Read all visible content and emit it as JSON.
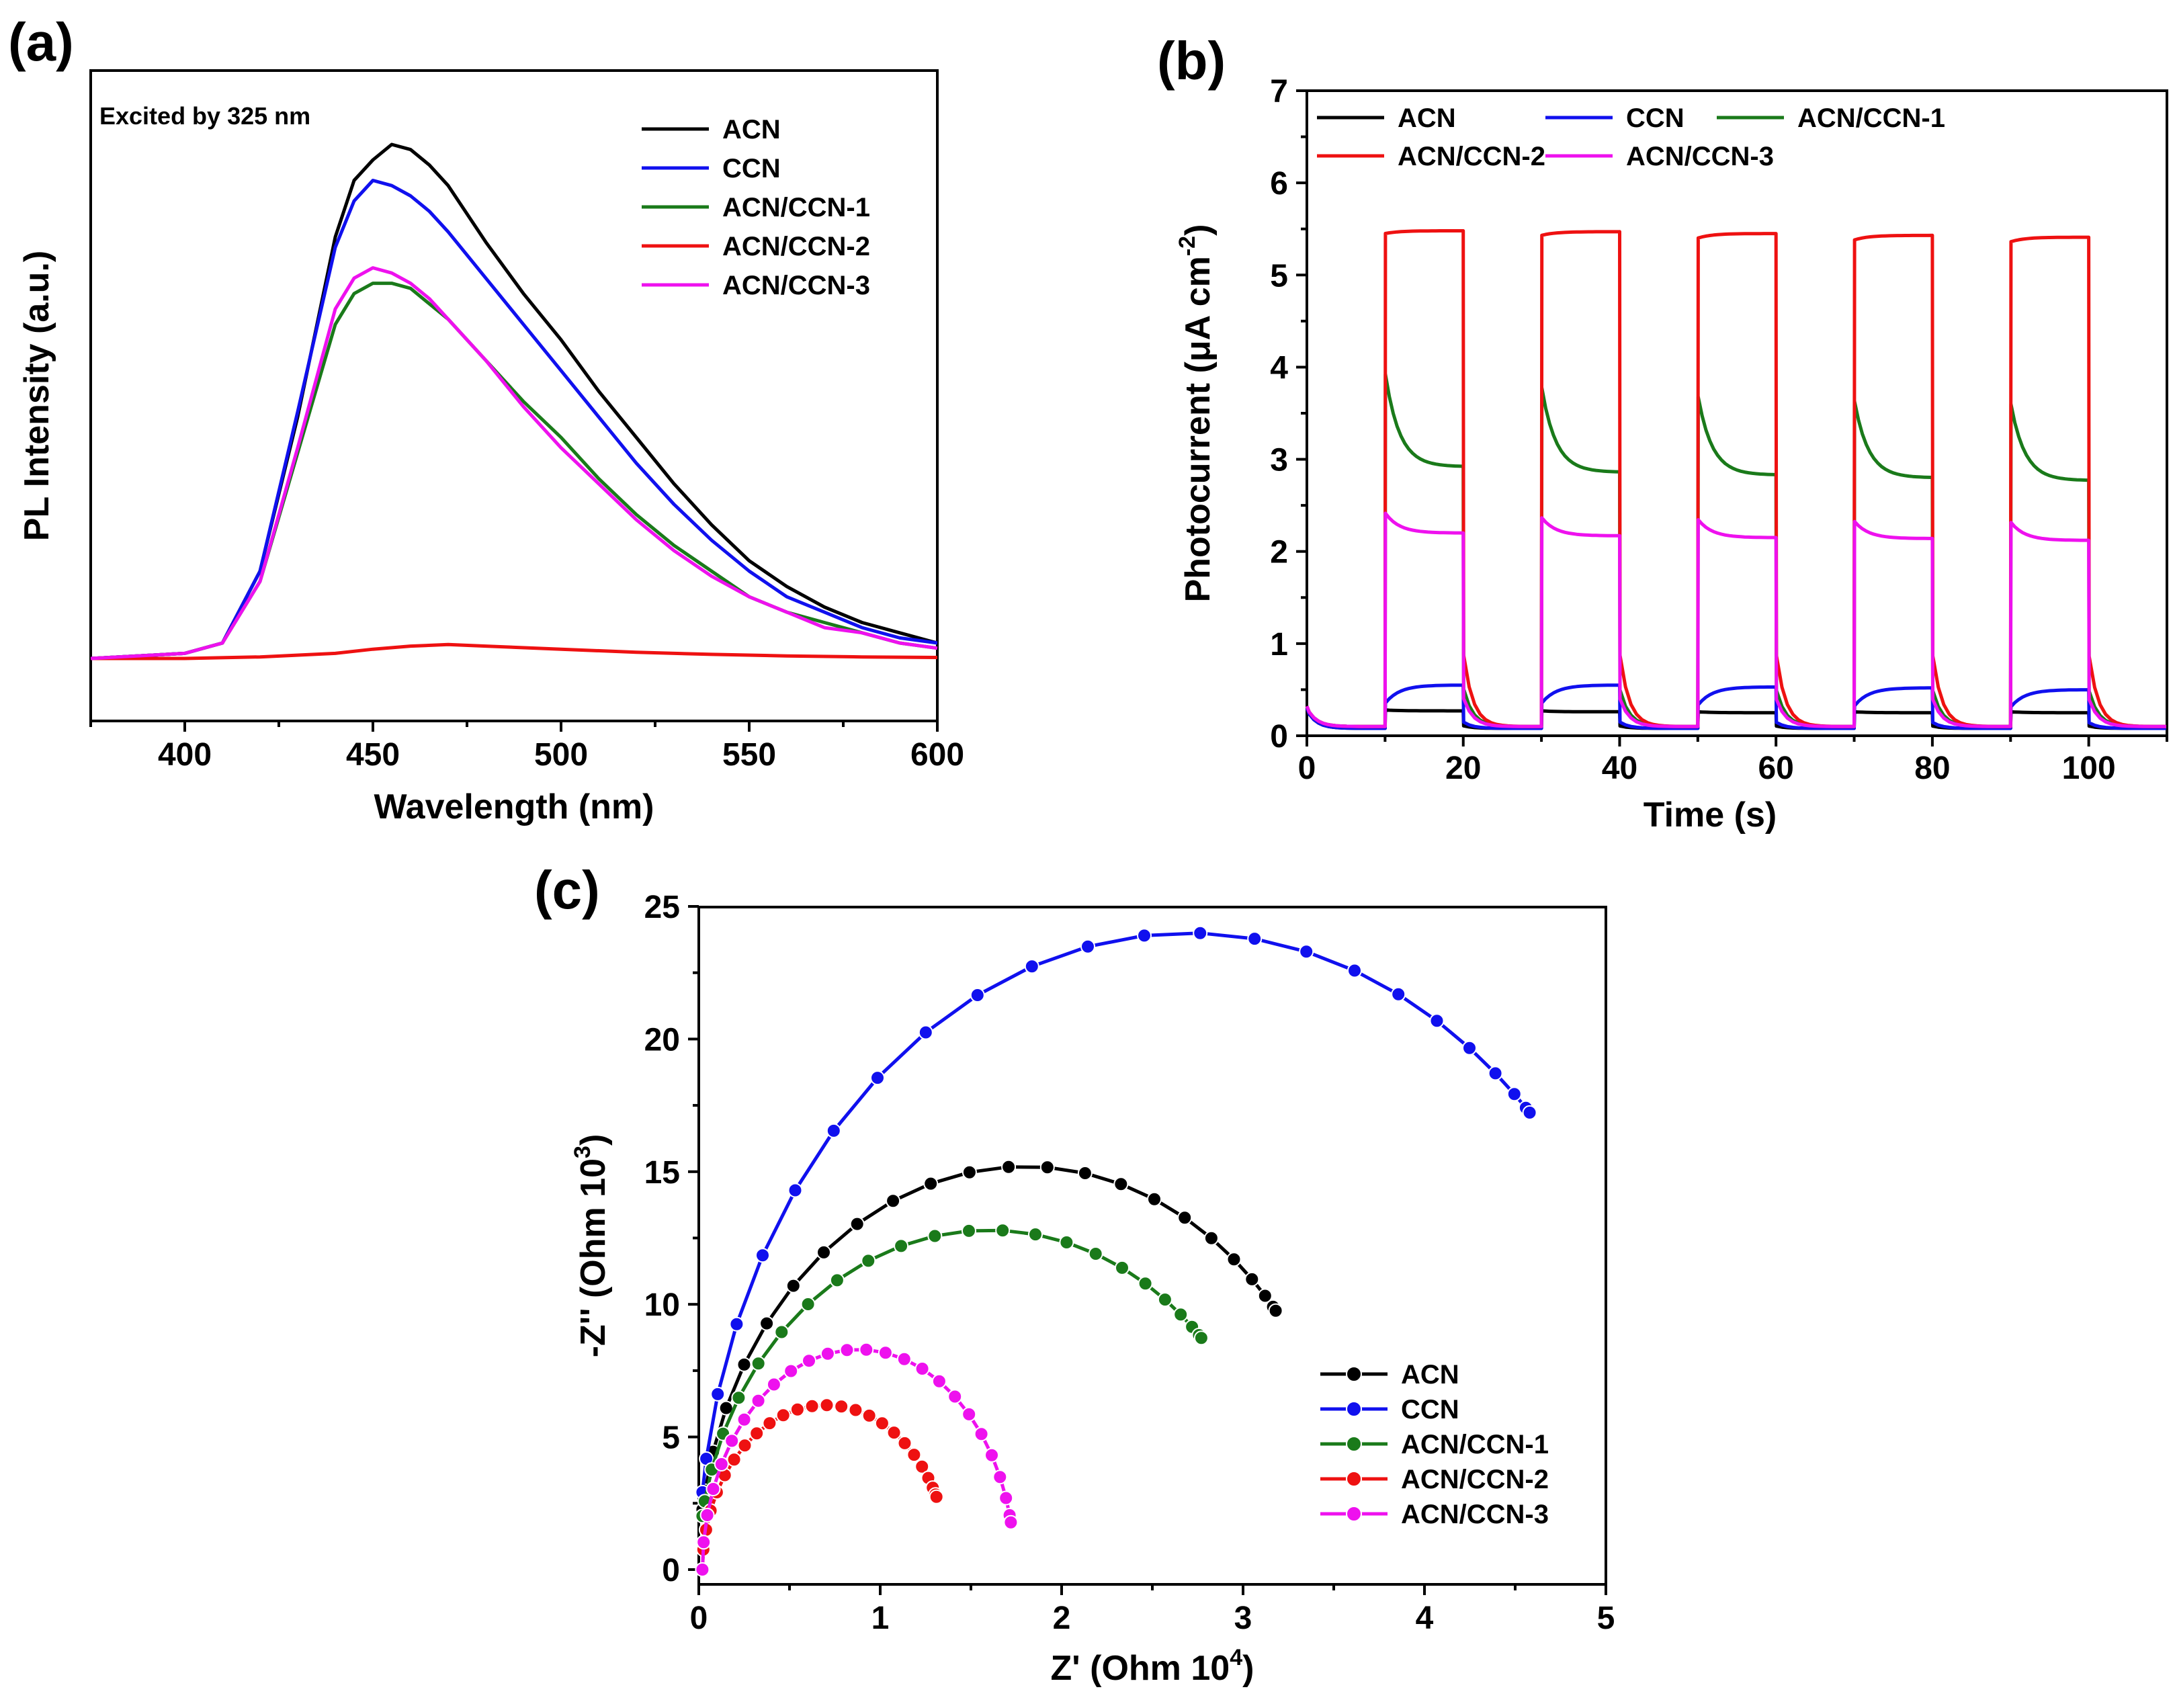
{
  "colors": {
    "ACN": "#000000",
    "CCN": "#1010ee",
    "ACN/CCN-1": "#1a7a1a",
    "ACN/CCN-2": "#ee1111",
    "ACN/CCN-3": "#ee11ee"
  },
  "chart_data": [
    {
      "panel": "(a)",
      "type": "line",
      "xlabel": "Wavelength (nm)",
      "ylabel": "PL Intensity (a.u.)",
      "xlim": [
        375,
        600
      ],
      "ylim": [
        0,
        1.05
      ],
      "xticks": [
        400,
        450,
        500,
        550,
        600
      ],
      "annotation": "Excited by 325 nm",
      "series": [
        {
          "name": "ACN",
          "color": "#000000",
          "x": [
            375,
            400,
            410,
            420,
            430,
            440,
            445,
            450,
            455,
            460,
            465,
            470,
            480,
            490,
            500,
            510,
            520,
            530,
            540,
            550,
            560,
            570,
            580,
            590,
            600
          ],
          "y": [
            0.0,
            0.01,
            0.03,
            0.17,
            0.47,
            0.82,
            0.93,
            0.97,
            1.0,
            0.99,
            0.96,
            0.92,
            0.81,
            0.71,
            0.62,
            0.52,
            0.43,
            0.34,
            0.26,
            0.19,
            0.14,
            0.1,
            0.07,
            0.05,
            0.03
          ]
        },
        {
          "name": "CCN",
          "color": "#1010ee",
          "x": [
            375,
            400,
            410,
            420,
            430,
            440,
            445,
            450,
            455,
            460,
            465,
            470,
            480,
            490,
            500,
            510,
            520,
            530,
            540,
            550,
            560,
            570,
            580,
            590,
            600
          ],
          "y": [
            0.0,
            0.01,
            0.03,
            0.17,
            0.48,
            0.8,
            0.89,
            0.93,
            0.92,
            0.9,
            0.87,
            0.83,
            0.74,
            0.65,
            0.56,
            0.47,
            0.38,
            0.3,
            0.23,
            0.17,
            0.12,
            0.09,
            0.06,
            0.04,
            0.03
          ]
        },
        {
          "name": "ACN/CCN-1",
          "color": "#1a7a1a",
          "x": [
            375,
            400,
            410,
            420,
            430,
            440,
            445,
            450,
            455,
            460,
            465,
            470,
            480,
            490,
            500,
            510,
            520,
            530,
            540,
            550,
            560,
            570,
            580,
            590,
            600
          ],
          "y": [
            0.0,
            0.01,
            0.03,
            0.15,
            0.4,
            0.65,
            0.71,
            0.73,
            0.73,
            0.72,
            0.69,
            0.66,
            0.58,
            0.5,
            0.43,
            0.35,
            0.28,
            0.22,
            0.17,
            0.12,
            0.09,
            0.07,
            0.05,
            0.03,
            0.02
          ]
        },
        {
          "name": "ACN/CCN-2",
          "color": "#ee1111",
          "x": [
            375,
            400,
            420,
            440,
            450,
            460,
            470,
            480,
            500,
            520,
            540,
            560,
            580,
            600
          ],
          "y": [
            0.0,
            0.0,
            0.003,
            0.01,
            0.018,
            0.024,
            0.027,
            0.024,
            0.018,
            0.012,
            0.008,
            0.005,
            0.003,
            0.002
          ]
        },
        {
          "name": "ACN/CCN-3",
          "color": "#ee11ee",
          "x": [
            375,
            400,
            410,
            420,
            430,
            440,
            445,
            450,
            455,
            460,
            465,
            470,
            480,
            490,
            500,
            510,
            520,
            530,
            540,
            550,
            560,
            570,
            580,
            590,
            600
          ],
          "y": [
            0.0,
            0.01,
            0.03,
            0.15,
            0.41,
            0.68,
            0.74,
            0.76,
            0.75,
            0.73,
            0.7,
            0.66,
            0.58,
            0.49,
            0.41,
            0.34,
            0.27,
            0.21,
            0.16,
            0.12,
            0.09,
            0.06,
            0.05,
            0.03,
            0.02
          ]
        }
      ]
    },
    {
      "panel": "(b)",
      "type": "line",
      "xlabel": "Time (s)",
      "ylabel": "Photocurrent (μA cm⁻²)",
      "ylabel_main": "Photocurrent (μA cm",
      "ylabel_sup": "-2",
      "ylabel_end": ")",
      "xlim": [
        0,
        110
      ],
      "ylim": [
        0,
        7
      ],
      "xticks": [
        0,
        20,
        40,
        60,
        80,
        100
      ],
      "yticks": [
        0,
        1,
        2,
        3,
        4,
        5,
        6,
        7
      ],
      "light_on_off_s": [
        [
          10,
          20
        ],
        [
          30,
          40
        ],
        [
          50,
          60
        ],
        [
          70,
          80
        ],
        [
          90,
          100
        ]
      ],
      "series": [
        {
          "name": "ACN",
          "color": "#000000",
          "dark": 0.08,
          "spike": [
            0.28,
            0.27,
            0.26,
            0.26,
            0.26
          ],
          "plateau": [
            0.27,
            0.26,
            0.25,
            0.25,
            0.25
          ]
        },
        {
          "name": "CCN",
          "color": "#1010ee",
          "dark": 0.08,
          "spike": [
            0.35,
            0.35,
            0.33,
            0.32,
            0.31
          ],
          "plateau": [
            0.55,
            0.55,
            0.53,
            0.52,
            0.5
          ]
        },
        {
          "name": "ACN/CCN-1",
          "color": "#1a7a1a",
          "dark": 0.1,
          "spike": [
            3.95,
            3.8,
            3.7,
            3.65,
            3.62
          ],
          "plateau": [
            2.92,
            2.86,
            2.83,
            2.8,
            2.77
          ]
        },
        {
          "name": "ACN/CCN-2",
          "color": "#ee1111",
          "dark": 0.1,
          "spike": [
            5.45,
            5.43,
            5.4,
            5.38,
            5.36
          ],
          "plateau": [
            5.48,
            5.47,
            5.45,
            5.43,
            5.41
          ]
        },
        {
          "name": "ACN/CCN-3",
          "color": "#ee11ee",
          "dark": 0.1,
          "spike": [
            2.42,
            2.37,
            2.35,
            2.33,
            2.32
          ],
          "plateau": [
            2.2,
            2.17,
            2.15,
            2.14,
            2.12
          ]
        }
      ]
    },
    {
      "panel": "(c)",
      "type": "scatter",
      "xlabel": "Z'  (Ohm 10⁴)",
      "xlabel_main": "Z'  (Ohm 10",
      "xlabel_sup": "4",
      "xlabel_end": ")",
      "ylabel": "-Z''  (Ohm 10³)",
      "ylabel_main": "-Z''  (Ohm 10",
      "ylabel_sup": "3",
      "ylabel_end": ")",
      "xlim": [
        0,
        5
      ],
      "ylim": [
        0,
        25
      ],
      "xticks": [
        0,
        1,
        2,
        3,
        4,
        5
      ],
      "yticks": [
        0,
        5,
        10,
        15,
        20,
        25
      ],
      "series": [
        {
          "name": "ACN",
          "color": "#000000",
          "center_x": 1.8,
          "radius_x": 1.8,
          "radius_y": 15.2,
          "x_end": 3.18,
          "points": 24
        },
        {
          "name": "CCN",
          "color": "#1010ee",
          "center_x": 2.7,
          "radius_x": 2.7,
          "radius_y": 24.0,
          "x_end": 4.58,
          "points": 24
        },
        {
          "name": "ACN/CCN-1",
          "color": "#1a7a1a",
          "center_x": 1.6,
          "radius_x": 1.6,
          "radius_y": 12.8,
          "x_end": 2.77,
          "points": 24
        },
        {
          "name": "ACN/CCN-2",
          "color": "#ee1111",
          "center_x": 0.7,
          "radius_x": 0.68,
          "radius_y": 6.2,
          "x_end": 1.31,
          "points": 26
        },
        {
          "name": "ACN/CCN-3",
          "color": "#ee11ee",
          "center_x": 0.88,
          "radius_x": 0.86,
          "radius_y": 8.3,
          "x_end": 1.72,
          "points": 26
        }
      ]
    }
  ]
}
